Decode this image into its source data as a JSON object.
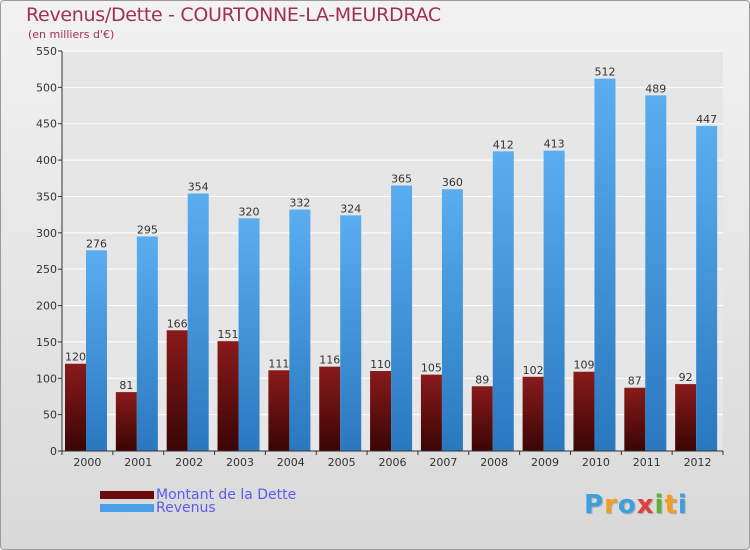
{
  "header": {
    "title": "Revenus/Dette - COURTONNE-LA-MEURDRAC",
    "subtitle": "(en milliers d'€)"
  },
  "chart_data": {
    "type": "bar",
    "title": "Revenus/Dette - COURTONNE-LA-MEURDRAC",
    "ylabel": "(en milliers d'€)",
    "xlabel": "",
    "categories": [
      "2000",
      "2001",
      "2002",
      "2003",
      "2004",
      "2005",
      "2006",
      "2007",
      "2008",
      "2009",
      "2010",
      "2011",
      "2012"
    ],
    "series": [
      {
        "name": "Montant de la Dette",
        "color": "#7a1010",
        "values": [
          120,
          81,
          166,
          151,
          111,
          116,
          110,
          105,
          89,
          102,
          109,
          87,
          92
        ]
      },
      {
        "name": "Revenus",
        "color": "#4aa0e8",
        "values": [
          276,
          295,
          354,
          320,
          332,
          324,
          365,
          360,
          412,
          413,
          512,
          489,
          447
        ]
      }
    ],
    "ylim": [
      0,
      550
    ],
    "yticks": [
      0,
      50,
      100,
      150,
      200,
      250,
      300,
      350,
      400,
      450,
      500,
      550
    ],
    "grid": true,
    "legend": "bottom-left"
  },
  "legend": {
    "items": [
      {
        "label": "Montant de la Dette",
        "color": "#6a0c0c"
      },
      {
        "label": "Revenus",
        "color": "#4aa0e8"
      }
    ]
  },
  "logo": {
    "letters": [
      "P",
      "r",
      "o",
      "x",
      "i",
      "t",
      "i"
    ],
    "colors": [
      "#3aa0e0",
      "#f0a020",
      "#3aa0e0",
      "#e04040",
      "#60b040",
      "#f0a020",
      "#3aa0e0"
    ]
  }
}
